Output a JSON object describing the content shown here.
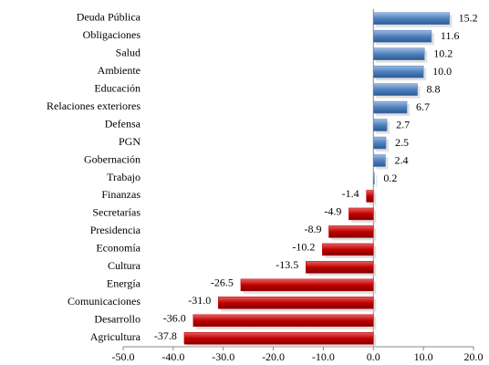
{
  "chart_data": {
    "type": "bar",
    "orientation": "horizontal",
    "categories": [
      "Deuda Pública",
      "Obligaciones",
      "Salud",
      "Ambiente",
      "Educación",
      "Relaciones exteriores",
      "Defensa",
      "PGN",
      "Gobernación",
      "Trabajo",
      "Finanzas",
      "Secretarías",
      "Presidencia",
      "Economía",
      "Cultura",
      "Energía",
      "Comunicaciones",
      "Desarrollo",
      "Agricultura"
    ],
    "values": [
      15.2,
      11.6,
      10.2,
      10.0,
      8.8,
      6.7,
      2.7,
      2.5,
      2.4,
      0.2,
      -1.4,
      -4.9,
      -8.9,
      -10.2,
      -13.5,
      -26.5,
      -31.0,
      -36.0,
      -37.8
    ],
    "value_labels": [
      "15.2",
      "11.6",
      "10.2",
      "10.0",
      "8.8",
      "6.7",
      "2.7",
      "2.5",
      "2.4",
      "0.2",
      "-1.4",
      "-4.9",
      "-8.9",
      "-10.2",
      "-13.5",
      "-26.5",
      "-31.0",
      "-36.0",
      "-37.8"
    ],
    "positive_color": "#4f81bd",
    "negative_color": "#c00000",
    "xlim": [
      -50,
      20
    ],
    "xticks": [
      {
        "value": -50,
        "label": "-50.0"
      },
      {
        "value": -40,
        "label": "-40.0"
      },
      {
        "value": -30,
        "label": "-30.0"
      },
      {
        "value": -20,
        "label": "-20.0"
      },
      {
        "value": -10,
        "label": "-10.0"
      },
      {
        "value": 0,
        "label": "0.0"
      },
      {
        "value": 10,
        "label": "10.0"
      },
      {
        "value": 20,
        "label": "20.0"
      }
    ]
  }
}
